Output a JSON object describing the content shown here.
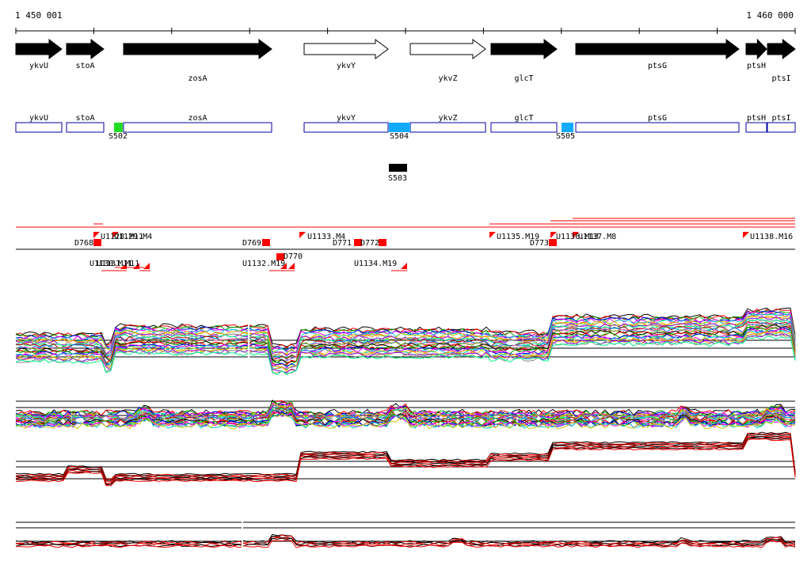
{
  "ruler": {
    "start_label": "1 450 001",
    "end_label": "1 460 000",
    "start": 1450001,
    "end": 1460000
  },
  "genes": [
    {
      "name": "ykvU",
      "x1": 20,
      "x2": 78,
      "strand": "+",
      "filled": true
    },
    {
      "name": "stoA",
      "x1": 84,
      "x2": 131,
      "strand": "+",
      "filled": true
    },
    {
      "name": "zosA",
      "x1": 156,
      "x2": 343,
      "strand": "+",
      "filled": true
    },
    {
      "name": "ykvY",
      "x1": 384,
      "x2": 490,
      "strand": "+",
      "filled": false
    },
    {
      "name": "ykvZ",
      "x1": 518,
      "x2": 613,
      "strand": "+",
      "filled": false
    },
    {
      "name": "glcT",
      "x1": 620,
      "x2": 703,
      "strand": "+",
      "filled": true
    },
    {
      "name": "ptsG",
      "x1": 727,
      "x2": 933,
      "strand": "+",
      "filled": true
    },
    {
      "name": "ptsH",
      "x1": 942,
      "x2": 968,
      "strand": "+",
      "filled": true
    },
    {
      "name": "ptsI",
      "x1": 969,
      "x2": 1004,
      "strand": "+",
      "filled": true
    }
  ],
  "gene_label_rows": {
    "ykvU": "top",
    "stoA": "top",
    "zosA": "bottom",
    "ykvY": "top",
    "ykvZ": "bottom",
    "glcT": "bottom",
    "ptsG": "top",
    "ptsH": "top",
    "ptsI": "bottom"
  },
  "segments": [
    {
      "name": "S502",
      "color": "#22dd22",
      "row": 1
    },
    {
      "name": "S504",
      "color": "#11aaff",
      "row": 1
    },
    {
      "name": "S505",
      "color": "#11aaff",
      "row": 1
    },
    {
      "name": "S503",
      "color": "#000000",
      "row": 2
    }
  ],
  "features_upper": [
    "D768",
    "U1128.M11",
    "U1129.M4",
    "D769",
    "U1133.M4",
    "D771",
    "D772",
    "U1135.M19",
    "D773",
    "U1136.M13",
    "U1137.M8",
    "U1138.M16"
  ],
  "features_lower": [
    "U1130.M11",
    "U1131.M11",
    "U1132.M19",
    "D770",
    "U1134.M19"
  ]
}
